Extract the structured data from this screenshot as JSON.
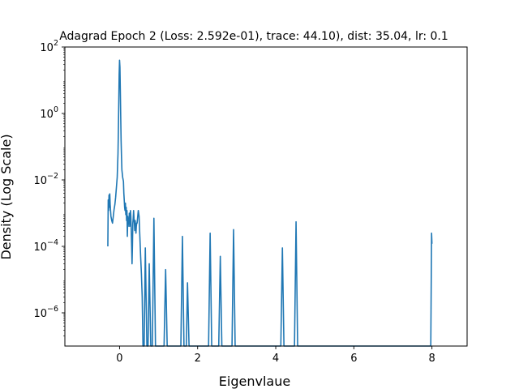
{
  "chart_data": {
    "type": "line",
    "title": "Adagrad Epoch 2 (Loss: 2.592e-01), trace: 44.10), dist: 35.04, lr: 0.1",
    "xlabel": "Eigenvlaue",
    "ylabel": "Density (Log Scale)",
    "xlim": [
      -1.4,
      8.9
    ],
    "ylim": [
      1e-07,
      100
    ],
    "yscale": "log",
    "grid": false,
    "x_ticks": [
      {
        "value": 0,
        "label": "0"
      },
      {
        "value": 2,
        "label": "2"
      },
      {
        "value": 4,
        "label": "4"
      },
      {
        "value": 6,
        "label": "6"
      },
      {
        "value": 8,
        "label": "8"
      }
    ],
    "y_ticks": [
      {
        "value": 100,
        "base": "10",
        "exp": "2"
      },
      {
        "value": 1,
        "base": "10",
        "exp": "0"
      },
      {
        "value": 0.01,
        "base": "10",
        "exp": "−2"
      },
      {
        "value": 0.0001,
        "base": "10",
        "exp": "−4"
      },
      {
        "value": 1e-06,
        "base": "10",
        "exp": "−6"
      }
    ],
    "series": [
      {
        "color": "#1f77b4",
        "points": [
          [
            -0.3,
            0.0001
          ],
          [
            -0.29,
            0.0025
          ],
          [
            -0.28,
            0.0012
          ],
          [
            -0.27,
            0.0035
          ],
          [
            -0.26,
            0.0015
          ],
          [
            -0.25,
            0.0038
          ],
          [
            -0.24,
            0.0018
          ],
          [
            -0.23,
            0.0012
          ],
          [
            -0.22,
            0.0008
          ],
          [
            -0.2,
            0.0006
          ],
          [
            -0.18,
            0.0005
          ],
          [
            -0.16,
            0.0008
          ],
          [
            -0.14,
            0.0013
          ],
          [
            -0.12,
            0.0018
          ],
          [
            -0.1,
            0.003
          ],
          [
            -0.08,
            0.006
          ],
          [
            -0.06,
            0.012
          ],
          [
            -0.04,
            0.06
          ],
          [
            -0.03,
            0.3
          ],
          [
            -0.02,
            2.0
          ],
          [
            -0.01,
            15
          ],
          [
            0.0,
            40
          ],
          [
            0.01,
            25
          ],
          [
            0.02,
            5
          ],
          [
            0.03,
            0.8
          ],
          [
            0.04,
            0.15
          ],
          [
            0.05,
            0.05
          ],
          [
            0.06,
            0.02
          ],
          [
            0.08,
            0.012
          ],
          [
            0.1,
            0.009
          ],
          [
            0.11,
            0.004
          ],
          [
            0.12,
            0.0025
          ],
          [
            0.13,
            0.0015
          ],
          [
            0.14,
            0.0012
          ],
          [
            0.15,
            0.002
          ],
          [
            0.16,
            0.0009
          ],
          [
            0.17,
            0.0015
          ],
          [
            0.18,
            0.0006
          ],
          [
            0.19,
            0.0012
          ],
          [
            0.2,
            0.0002
          ],
          [
            0.21,
            0.0008
          ],
          [
            0.22,
            0.0004
          ],
          [
            0.23,
            0.0006
          ],
          [
            0.24,
            0.0005
          ],
          [
            0.25,
            0.001
          ],
          [
            0.26,
            0.0004
          ],
          [
            0.27,
            0.0006
          ],
          [
            0.28,
            0.0012
          ],
          [
            0.29,
            0.0008
          ],
          [
            0.3,
            0.0003
          ],
          [
            0.31,
            0.0001
          ],
          [
            0.32,
            3e-05
          ],
          [
            0.33,
            0.0001
          ],
          [
            0.34,
            0.0005
          ],
          [
            0.35,
            0.0007
          ],
          [
            0.36,
            0.0012
          ],
          [
            0.37,
            0.0007
          ],
          [
            0.38,
            0.0005
          ],
          [
            0.39,
            0.0003
          ],
          [
            0.4,
            0.0006
          ],
          [
            0.41,
            0.00045
          ],
          [
            0.42,
            0.00025
          ],
          [
            0.43,
            0.0004
          ],
          [
            0.44,
            0.0005
          ],
          [
            0.45,
            0.0005
          ],
          [
            0.47,
            0.0009
          ],
          [
            0.48,
            0.0012
          ],
          [
            0.5,
            0.0008
          ],
          [
            0.52,
            0.0002
          ],
          [
            0.54,
            5e-05
          ],
          [
            0.56,
            1.5e-05
          ],
          [
            0.58,
            3e-06
          ],
          [
            0.6,
            1e-07
          ],
          [
            0.63,
            1e-07
          ],
          [
            0.66,
            9e-05
          ],
          [
            0.7,
            1e-07
          ],
          [
            0.73,
            1e-07
          ],
          [
            0.76,
            3e-05
          ],
          [
            0.8,
            1e-07
          ],
          [
            0.84,
            1e-07
          ],
          [
            0.88,
            0.0007
          ],
          [
            0.92,
            1e-07
          ],
          [
            1.14,
            1e-07
          ],
          [
            1.18,
            2e-05
          ],
          [
            1.22,
            1e-07
          ],
          [
            1.57,
            1e-07
          ],
          [
            1.61,
            0.0002
          ],
          [
            1.65,
            1e-07
          ],
          [
            1.71,
            1e-07
          ],
          [
            1.74,
            8e-06
          ],
          [
            1.78,
            1e-07
          ],
          [
            2.28,
            1e-07
          ],
          [
            2.32,
            0.00025
          ],
          [
            2.36,
            1e-07
          ],
          [
            2.54,
            1e-07
          ],
          [
            2.58,
            5e-05
          ],
          [
            2.62,
            1e-07
          ],
          [
            2.88,
            1e-07
          ],
          [
            2.92,
            0.00032
          ],
          [
            2.96,
            1e-07
          ],
          [
            4.13,
            1e-07
          ],
          [
            4.17,
            9e-05
          ],
          [
            4.21,
            1e-07
          ],
          [
            4.48,
            1e-07
          ],
          [
            4.52,
            0.00055
          ],
          [
            4.56,
            1e-07
          ],
          [
            7.97,
            1e-07
          ],
          [
            7.99,
            0.00025
          ],
          [
            8.0,
            0.00012
          ]
        ]
      }
    ]
  }
}
